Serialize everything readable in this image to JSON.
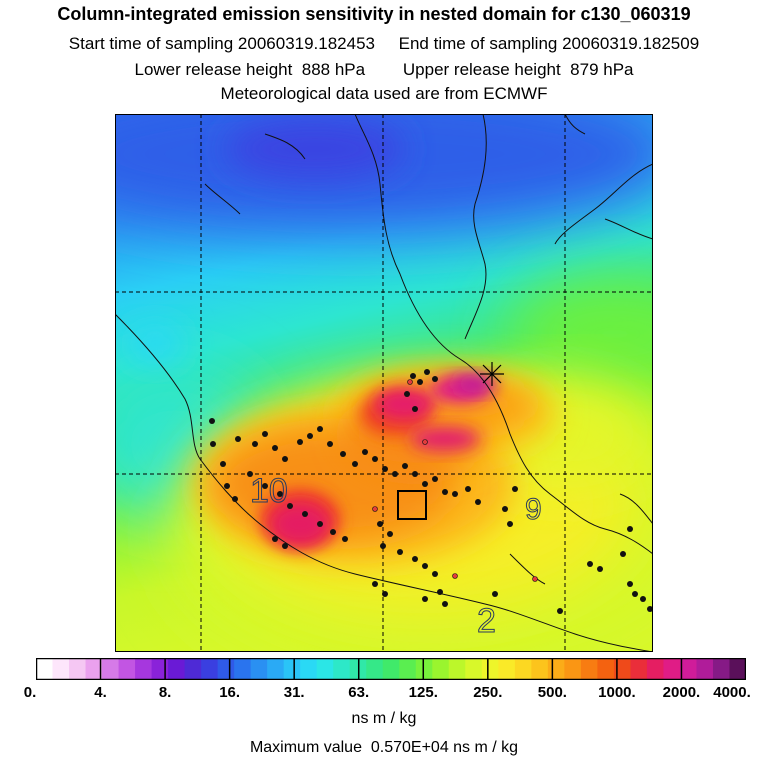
{
  "title": {
    "line1": "Column-integrated emission sensitivity in nested domain for c130_060319",
    "line2": "Start time of sampling 20060319.182453     End time of sampling 20060319.182509",
    "line3": "Lower release height  888 hPa        Upper release height  879 hPa",
    "line4": "Meteorological data used are from ECMWF"
  },
  "colorbar": {
    "ticks": [
      "0.",
      "4.",
      "8.",
      "16.",
      "31.",
      "63.",
      "125.",
      "250.",
      "500.",
      "1000.",
      "2000.",
      "4000."
    ],
    "colors": [
      "#ffffff",
      "#fde6fb",
      "#f5c7f3",
      "#eaa1ee",
      "#d67ae8",
      "#c255e3",
      "#a637de",
      "#8a22d9",
      "#6a1ad6",
      "#4e2ad6",
      "#3a3fe0",
      "#2f5ae8",
      "#2a74ee",
      "#2a90f2",
      "#2aaaf5",
      "#2ac4f7",
      "#2ad9f5",
      "#2be6e6",
      "#2de8c8",
      "#30e8a8",
      "#35e888",
      "#40ea6a",
      "#5aee50",
      "#78f23c",
      "#9af52e",
      "#bcf72a",
      "#d8f82a",
      "#eef52a",
      "#faea28",
      "#fcd822",
      "#fcc41c",
      "#fbac18",
      "#fa9614",
      "#f87c12",
      "#f46210",
      "#ef4a1a",
      "#ea2e3a",
      "#e51e62",
      "#e01c86",
      "#d01c9a",
      "#b01c9a",
      "#861a86",
      "#5a105a"
    ],
    "units": "ns m / kg"
  },
  "maximum": "Maximum value  0.570E+04 ns m / kg",
  "map": {
    "contour_labels": [
      "10",
      "9",
      "2"
    ],
    "grid": "dashed lat/lon grid lines",
    "release_marker": "asterisk"
  }
}
